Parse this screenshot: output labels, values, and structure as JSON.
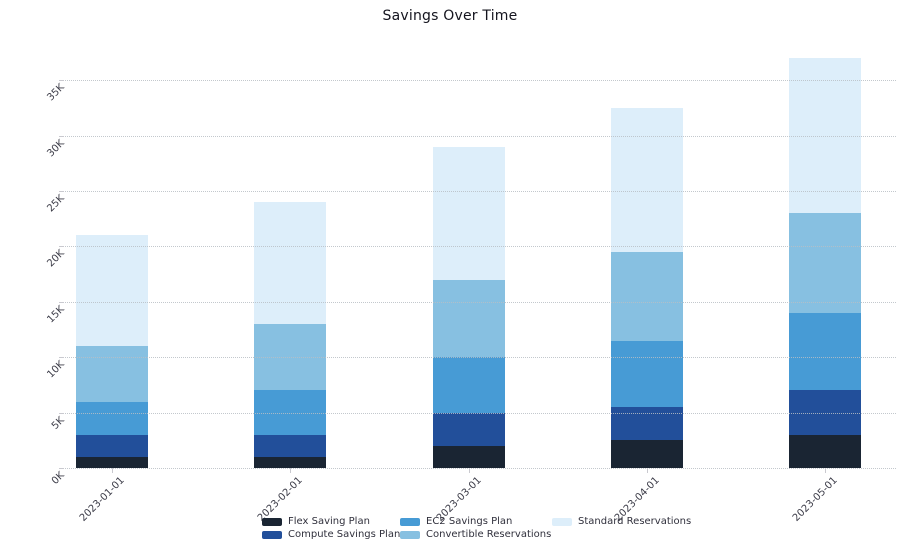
{
  "title": "Savings Over Time",
  "chart_data": {
    "type": "bar",
    "stacked": true,
    "title": "Savings Over Time",
    "unit": "K",
    "categories": [
      "2023-01-01",
      "2023-02-01",
      "2023-03-01",
      "2023-04-01",
      "2023-05-01"
    ],
    "series": [
      {
        "name": "Flex Saving Plan",
        "color": "#1a2533",
        "values": [
          1,
          1,
          2,
          2.5,
          3
        ]
      },
      {
        "name": "Compute Savings Plan",
        "color": "#224f9a",
        "values": [
          2,
          2,
          3,
          3,
          4
        ]
      },
      {
        "name": "EC2 Savings Plan",
        "color": "#479bd5",
        "values": [
          3,
          4,
          5,
          6,
          7
        ]
      },
      {
        "name": "Convertible Reservations",
        "color": "#87c0e1",
        "values": [
          5,
          6,
          7,
          8,
          9
        ]
      },
      {
        "name": "Standard Reservations",
        "color": "#ddeefa",
        "values": [
          10,
          11,
          12,
          13,
          14
        ]
      }
    ],
    "totals": [
      21,
      24,
      29,
      32.5,
      37
    ],
    "ytick_labels": [
      "0K",
      "5K",
      "10K",
      "15K",
      "20K",
      "25K",
      "30K",
      "35K"
    ],
    "ytick_values": [
      0,
      5,
      10,
      15,
      20,
      25,
      30,
      35
    ],
    "ylim": [
      0,
      38.6
    ],
    "xlabel": "",
    "ylabel": "",
    "grid": "horizontal-dotted",
    "legend_position": "bottom-center",
    "legend_columns": [
      [
        "Flex Saving Plan",
        "Compute Savings Plan"
      ],
      [
        "EC2 Savings Plan",
        "Convertible Reservations"
      ],
      [
        "Standard Reservations"
      ]
    ]
  }
}
